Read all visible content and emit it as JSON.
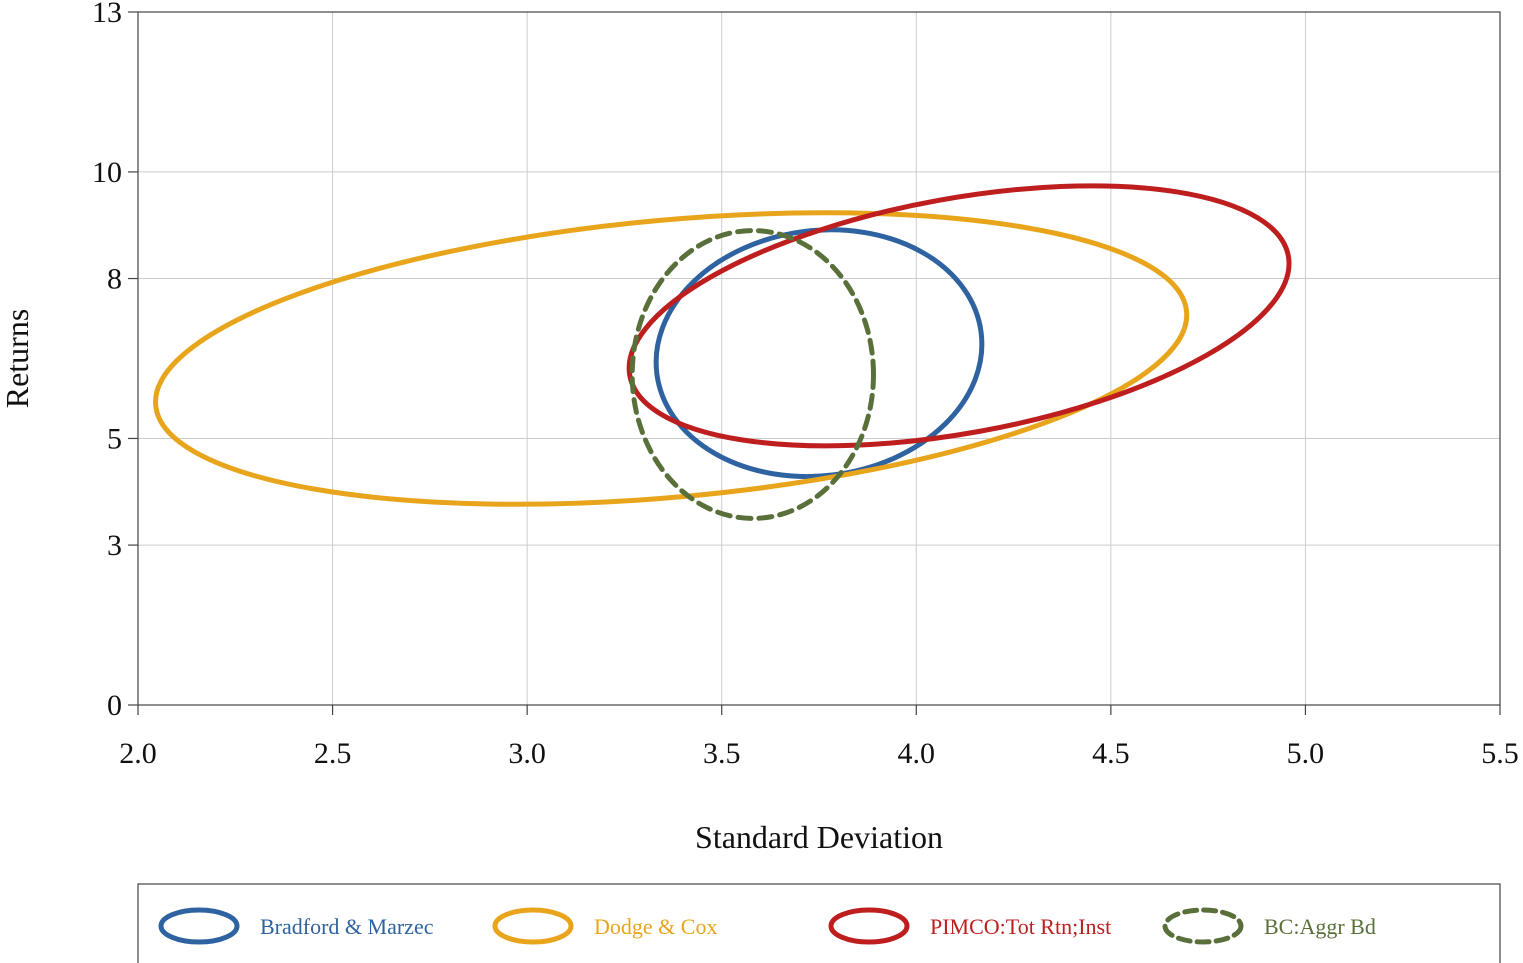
{
  "chart_data": {
    "type": "scatter",
    "xlabel": "Standard Deviation",
    "ylabel": "Returns",
    "xlim": [
      2.0,
      5.5
    ],
    "ylim": [
      0,
      13
    ],
    "x_ticks": [
      "2.0",
      "2.5",
      "3.0",
      "3.5",
      "4.0",
      "4.5",
      "5.0",
      "5.5"
    ],
    "y_ticks": [
      "0",
      "3",
      "5",
      "8",
      "10",
      "13"
    ],
    "grid": true,
    "legend_position": "bottom",
    "series": [
      {
        "name": "Bradford & Marzec",
        "shape": "ellipse",
        "color": "#2e62a0",
        "dashed": false,
        "center": [
          3.75,
          6.6
        ],
        "rx": 0.42,
        "ry": 2.3,
        "angle_deg": 7.3
      },
      {
        "name": "Dodge & Cox",
        "shape": "ellipse",
        "color": "#e8a51c",
        "dashed": false,
        "center": [
          3.37,
          6.5
        ],
        "rx": 1.33,
        "ry": 2.6,
        "angle_deg": 5.2
      },
      {
        "name": "PIMCO:Tot Rtn;Inst",
        "shape": "ellipse",
        "color": "#be1e1e",
        "dashed": false,
        "center": [
          4.11,
          7.3
        ],
        "rx": 0.86,
        "ry": 2.2,
        "angle_deg": 10.3
      },
      {
        "name": "BC:Aggr Bd",
        "shape": "ellipse",
        "color": "#5a703a",
        "dashed": true,
        "center": [
          3.58,
          6.2
        ],
        "rx": 0.31,
        "ry": 2.7,
        "angle_deg": 0
      }
    ]
  }
}
